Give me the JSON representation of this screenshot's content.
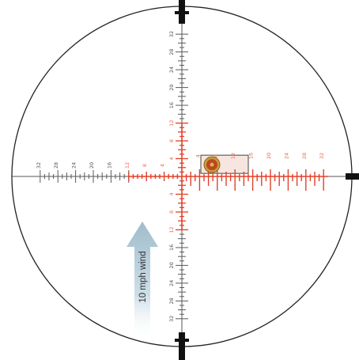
{
  "reticle": {
    "colors": {
      "outline": "#222222",
      "black_scale": "#5a5a5a",
      "red_scale": "#e0412a",
      "red_text": "#ea6a50",
      "bullet_box_fill": "#f7e6df",
      "bullet_ring": "#b98a2e",
      "bullet_core": "#b8481e",
      "wind_arrow": "#b9cfdc"
    },
    "horizontal_labels_left": [
      "32",
      "28",
      "24",
      "20",
      "16",
      "12",
      "8",
      "4"
    ],
    "horizontal_labels_right": [
      "4",
      "8",
      "12",
      "16",
      "20",
      "24",
      "28",
      "32"
    ],
    "vertical_labels_top": [
      "32",
      "28",
      "24",
      "20",
      "16",
      "12",
      "8",
      "4"
    ],
    "vertical_labels_bottom": [
      "4",
      "8",
      "12",
      "16",
      "20",
      "24",
      "28",
      "32"
    ],
    "bullet_impact": {
      "right": 10,
      "up": 3
    },
    "wind_label": "10 mph wind"
  }
}
